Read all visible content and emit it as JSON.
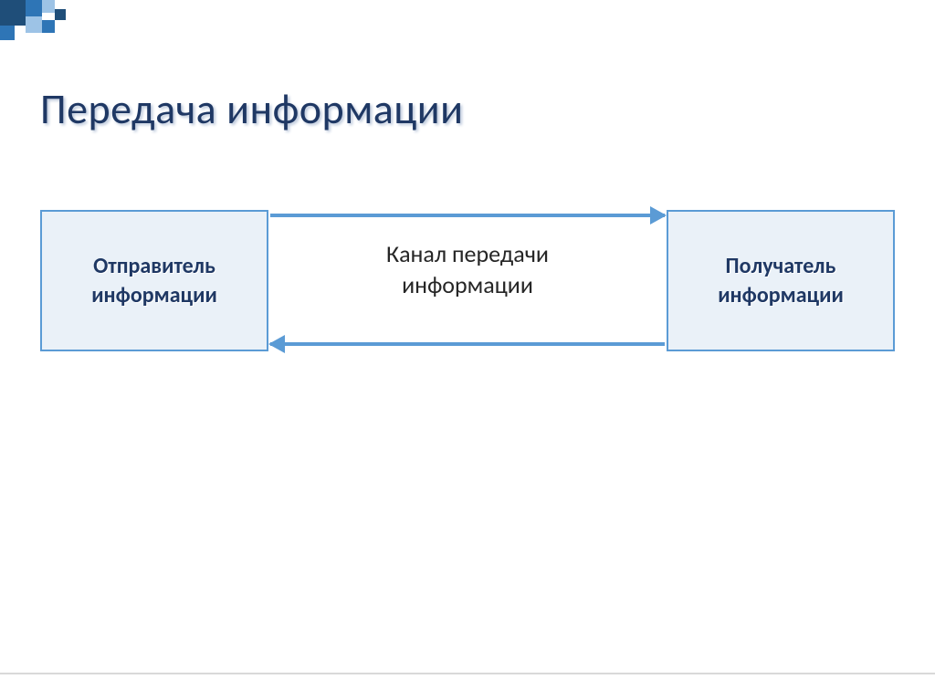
{
  "title": {
    "text": "Передача информации",
    "color": "#1f3864",
    "shadow_color": "#b8c5d9",
    "fontsize": 46
  },
  "decoration": {
    "colors": {
      "dark": "#1f4e79",
      "mid": "#2e75b6",
      "light": "#9dc3e6"
    }
  },
  "diagram": {
    "type": "flowchart",
    "nodes": [
      {
        "id": "sender",
        "label": "Отправитель\nинформации",
        "text_color": "#1f3864",
        "text_shadow": "#ffffff",
        "fill": "#eaf1f8",
        "border_color": "#5b9bd5",
        "border_width": 2,
        "fontsize": 24,
        "position": "left"
      },
      {
        "id": "receiver",
        "label": "Получатель\nинформации",
        "text_color": "#1f3864",
        "text_shadow": "#ffffff",
        "fill": "#eaf1f8",
        "border_color": "#5b9bd5",
        "border_width": 2,
        "fontsize": 24,
        "position": "right"
      }
    ],
    "edges": [
      {
        "from": "sender",
        "to": "receiver",
        "label": "Канал передачи\nинформации",
        "label_color": "#262626",
        "label_fontsize": 26,
        "arrow_color": "#5b9bd5",
        "arrow_width": 4,
        "direction": "right"
      },
      {
        "from": "receiver",
        "to": "sender",
        "arrow_color": "#5b9bd5",
        "arrow_width": 4,
        "direction": "left"
      }
    ],
    "background_color": "#ffffff"
  }
}
